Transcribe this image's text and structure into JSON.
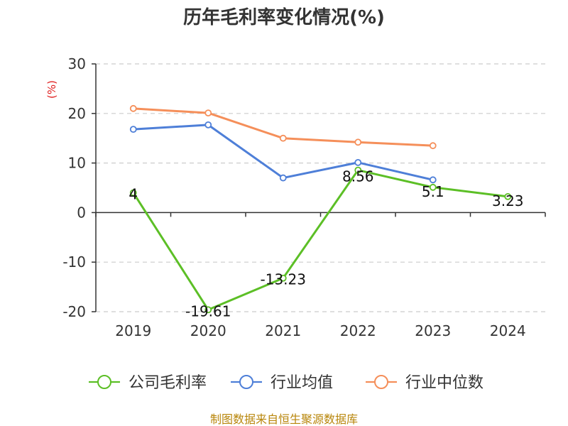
{
  "chart_data": {
    "type": "line",
    "title": "历年毛利率变化情况(%)",
    "unit_label": "(%)",
    "categories": [
      "2019",
      "2020",
      "2021",
      "2022",
      "2023",
      "2024"
    ],
    "ylim": [
      -20,
      30
    ],
    "yticks": [
      -20,
      -10,
      0,
      10,
      20,
      30
    ],
    "grid": true,
    "legend_position": "bottom",
    "series": [
      {
        "name": "公司毛利率",
        "color": "#5cbf26",
        "values": [
          4,
          -19.61,
          -13.23,
          8.56,
          5.1,
          3.23
        ],
        "labels": [
          "4",
          "-19.61",
          "-13.23",
          "8.56",
          "5.1",
          "3.23"
        ]
      },
      {
        "name": "行业均值",
        "color": "#4e7fd8",
        "values": [
          16.8,
          17.7,
          7.0,
          10.1,
          6.6,
          null
        ]
      },
      {
        "name": "行业中位数",
        "color": "#f58f5a",
        "values": [
          21.0,
          20.1,
          15.0,
          14.2,
          13.5,
          null
        ]
      }
    ],
    "source": "制图数据来自恒生聚源数据库"
  }
}
